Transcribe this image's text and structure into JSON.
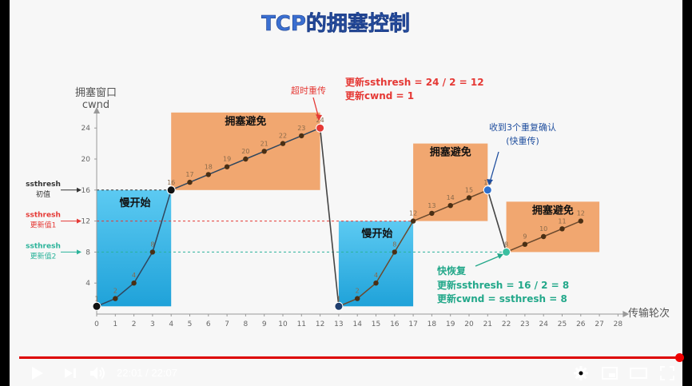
{
  "title": "TCP的拥塞控制",
  "chart_data": {
    "type": "line",
    "ylabel_line1": "拥塞窗口",
    "ylabel_line2": "cwnd",
    "xlabel": "传输轮次",
    "xlim": [
      0,
      28
    ],
    "ylim": [
      0,
      26
    ],
    "xticks": [
      0,
      1,
      2,
      3,
      4,
      5,
      6,
      7,
      8,
      9,
      10,
      11,
      12,
      13,
      14,
      15,
      16,
      17,
      18,
      19,
      20,
      21,
      22,
      23,
      24,
      25,
      26,
      27,
      28
    ],
    "yticks": [
      4,
      8,
      12,
      16,
      20,
      24
    ],
    "x0_label": "0",
    "series": [
      {
        "x": [
          0,
          1,
          2,
          3,
          4,
          5,
          6,
          7,
          8,
          9,
          10,
          11,
          12
        ],
        "y": [
          1,
          2,
          4,
          8,
          16,
          17,
          18,
          19,
          20,
          21,
          22,
          23,
          24
        ]
      },
      {
        "x": [
          13,
          14,
          15,
          16,
          17,
          18,
          19,
          20,
          21
        ],
        "y": [
          1,
          2,
          4,
          8,
          12,
          13,
          14,
          15,
          16
        ]
      },
      {
        "x": [
          22,
          23,
          24,
          25,
          26
        ],
        "y": [
          8,
          9,
          10,
          11,
          12
        ]
      }
    ],
    "drop_lines": [
      {
        "from": [
          12,
          24
        ],
        "to": [
          13,
          1
        ]
      },
      {
        "from": [
          21,
          16
        ],
        "to": [
          22,
          8
        ]
      }
    ],
    "highlight_points": [
      {
        "x": 0,
        "y": 1,
        "color": "#111111"
      },
      {
        "x": 4,
        "y": 16,
        "color": "#111111"
      },
      {
        "x": 12,
        "y": 24,
        "color": "#e53935"
      },
      {
        "x": 13,
        "y": 1,
        "color": "#1f3e6e"
      },
      {
        "x": 21,
        "y": 16,
        "color": "#2e6fcc"
      },
      {
        "x": 22,
        "y": 8,
        "color": "#3bbfa0"
      }
    ],
    "regions": [
      {
        "label": "慢开始",
        "x": [
          0,
          4
        ],
        "y": [
          1,
          16
        ],
        "color": "#35b4e6"
      },
      {
        "label": "拥塞避免",
        "x": [
          4,
          12
        ],
        "y": [
          16,
          26
        ],
        "color": "#f0a064"
      },
      {
        "label": "慢开始",
        "x": [
          13,
          17
        ],
        "y": [
          1,
          12
        ],
        "color": "#35b4e6"
      },
      {
        "label": "拥塞避免",
        "x": [
          17,
          21
        ],
        "y": [
          12,
          22
        ],
        "color": "#f0a064"
      },
      {
        "label": "拥塞避免",
        "x": [
          22,
          27
        ],
        "y": [
          8,
          14.5
        ],
        "color": "#f0a064"
      }
    ],
    "threshold_lines": [
      {
        "y": 16,
        "label1": "ssthresh",
        "label2": "初值",
        "color": "#333333"
      },
      {
        "y": 12,
        "label1": "ssthresh",
        "label2": "更新值1",
        "color": "#e53935"
      },
      {
        "y": 8,
        "label1": "ssthresh",
        "label2": "更新值2",
        "color": "#2bb39a"
      }
    ],
    "annotations": [
      {
        "text": "超时重传",
        "color": "#e53935"
      },
      {
        "text": "更新ssthresh = 24 / 2 = 12",
        "color": "#e53935"
      },
      {
        "text": "更新cwnd = 1",
        "color": "#e53935"
      },
      {
        "text": "收到3个重复确认",
        "color": "#1f4e9e"
      },
      {
        "text": "(快重传)",
        "color": "#1f4e9e"
      },
      {
        "text": "快恢复",
        "color": "#23a88a"
      },
      {
        "text": "更新ssthresh = 16 / 2 = 8",
        "color": "#23a88a"
      },
      {
        "text": "更新cwnd = ssthresh = 8",
        "color": "#23a88a"
      }
    ]
  },
  "player": {
    "current_time": "22:01",
    "separator": " / ",
    "duration": "22:07",
    "progress": 0.995,
    "play_icon": "play-icon",
    "next_icon": "next-icon",
    "volume_icon": "volume-icon",
    "settings_icon": "gear-icon",
    "miniplayer_icon": "miniplayer-icon",
    "theater_icon": "theater-icon",
    "fullscreen_icon": "fullscreen-icon"
  }
}
